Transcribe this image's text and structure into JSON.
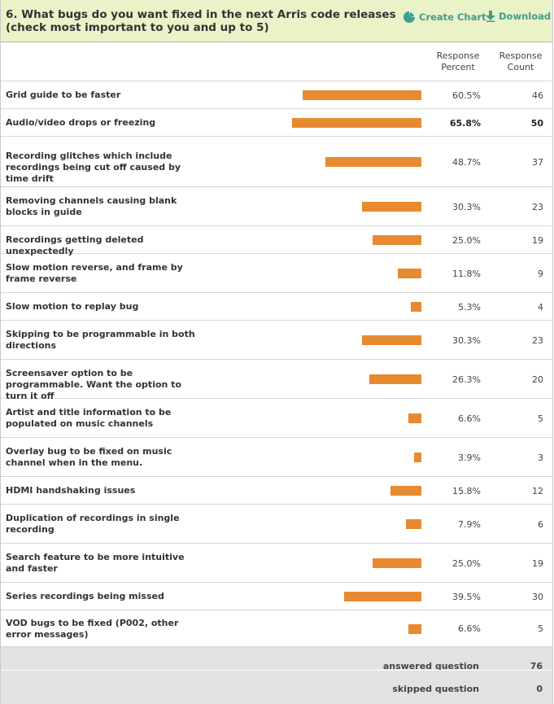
{
  "question": {
    "title": "6. What bugs do you want fixed in the next Arris code releases (check most important to you and up to 5)",
    "create_chart_label": "Create Chart",
    "download_label": "Download"
  },
  "columns": {
    "percent_line1": "Response",
    "percent_line2": "Percent",
    "count_line1": "Response",
    "count_line2": "Count"
  },
  "chart_data": {
    "type": "bar",
    "orientation": "horizontal",
    "xlim": [
      0,
      100
    ],
    "grid": false,
    "bar_color": "#e88a30",
    "highlight_index": 1,
    "categories": [
      "Grid guide to be faster",
      "Audio/video drops or freezing",
      "Recording glitches which include recordings being cut off caused by time drift",
      "Removing channels causing blank blocks in guide",
      "Recordings getting deleted unexpectedly",
      "Slow motion reverse, and frame by frame reverse",
      "Slow motion to replay bug",
      "Skipping to be programmable in both directions",
      "Screensaver option to be programmable. Want the option to turn it off",
      "Artist and title information to be populated on music channels",
      "Overlay bug to be fixed on music channel when in the menu.",
      "HDMI handshaking issues",
      "Duplication of recordings in single recording",
      "Search feature to be more intuitive and faster",
      "Series recordings being missed",
      "VOD bugs to be fixed (P002, other error messages)"
    ],
    "values": [
      60.5,
      65.8,
      48.7,
      30.3,
      25.0,
      11.8,
      5.3,
      30.3,
      26.3,
      6.6,
      3.9,
      15.8,
      7.9,
      25.0,
      39.5,
      6.6
    ],
    "percent_labels": [
      "60.5%",
      "65.8%",
      "48.7%",
      "30.3%",
      "25.0%",
      "11.8%",
      "5.3%",
      "30.3%",
      "26.3%",
      "6.6%",
      "3.9%",
      "15.8%",
      "7.9%",
      "25.0%",
      "39.5%",
      "6.6%"
    ],
    "counts": [
      46,
      50,
      37,
      23,
      19,
      9,
      4,
      23,
      20,
      5,
      3,
      12,
      6,
      19,
      30,
      5
    ]
  },
  "summary": {
    "answered_label": "answered question",
    "answered_value": "76",
    "skipped_label": "skipped question",
    "skipped_value": "0"
  },
  "colors": {
    "header_bg": "#eaf2c8",
    "accent": "#3f9e8f",
    "bar": "#e88a30",
    "footer_bg": "#e2e2e2"
  },
  "icons": {
    "create_chart": "pie-chart-icon",
    "download": "download-arrow-icon"
  }
}
